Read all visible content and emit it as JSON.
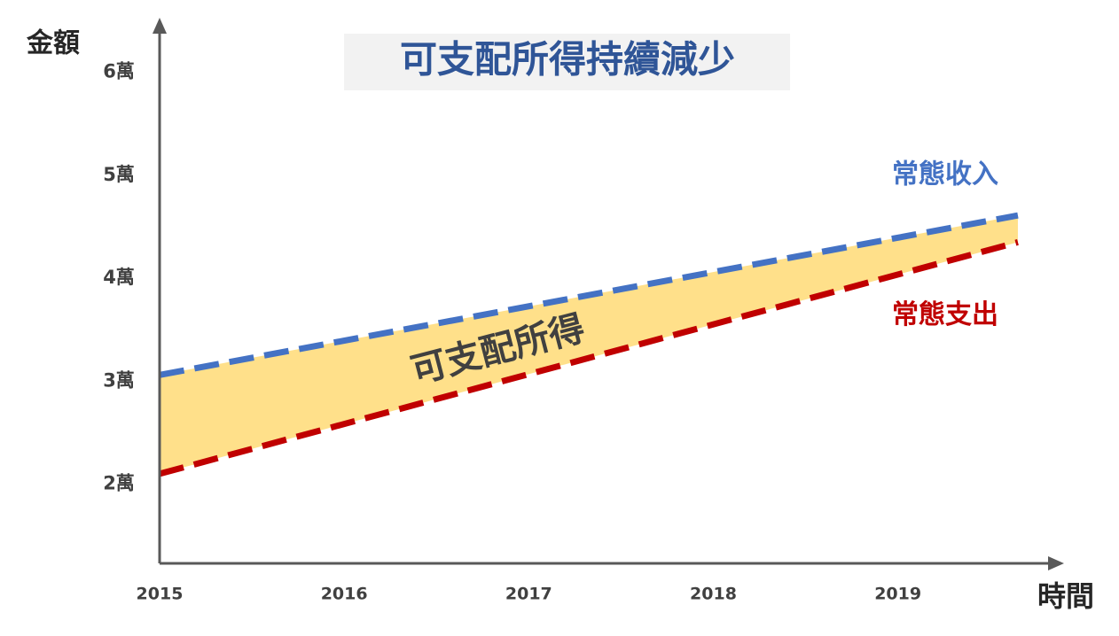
{
  "chart_data": {
    "type": "line",
    "title": "可支配所得持續減少",
    "y_label": "金額",
    "x_label": "時間",
    "annotation": "可支配所得",
    "x": [
      2015,
      2019.65
    ],
    "series": [
      {
        "name": "常態收入",
        "color": "#4472c4",
        "values": [
          3.06,
          4.61
        ]
      },
      {
        "name": "常態支出",
        "color": "#c00000",
        "values": [
          2.1,
          4.35
        ]
      }
    ],
    "fill_between": true,
    "fill_color": "#ffe08a",
    "xlim": [
      2015,
      2019.9
    ],
    "ylim": [
      1.23,
      6.53
    ],
    "xticks": [
      2015,
      2016,
      2017,
      2018,
      2019
    ],
    "yticks": [
      {
        "value": 2,
        "label": "2萬"
      },
      {
        "value": 3,
        "label": "3萬"
      },
      {
        "value": 4,
        "label": "4萬"
      },
      {
        "value": 5,
        "label": "5萬"
      },
      {
        "value": 6,
        "label": "6萬"
      }
    ],
    "grid": false
  }
}
